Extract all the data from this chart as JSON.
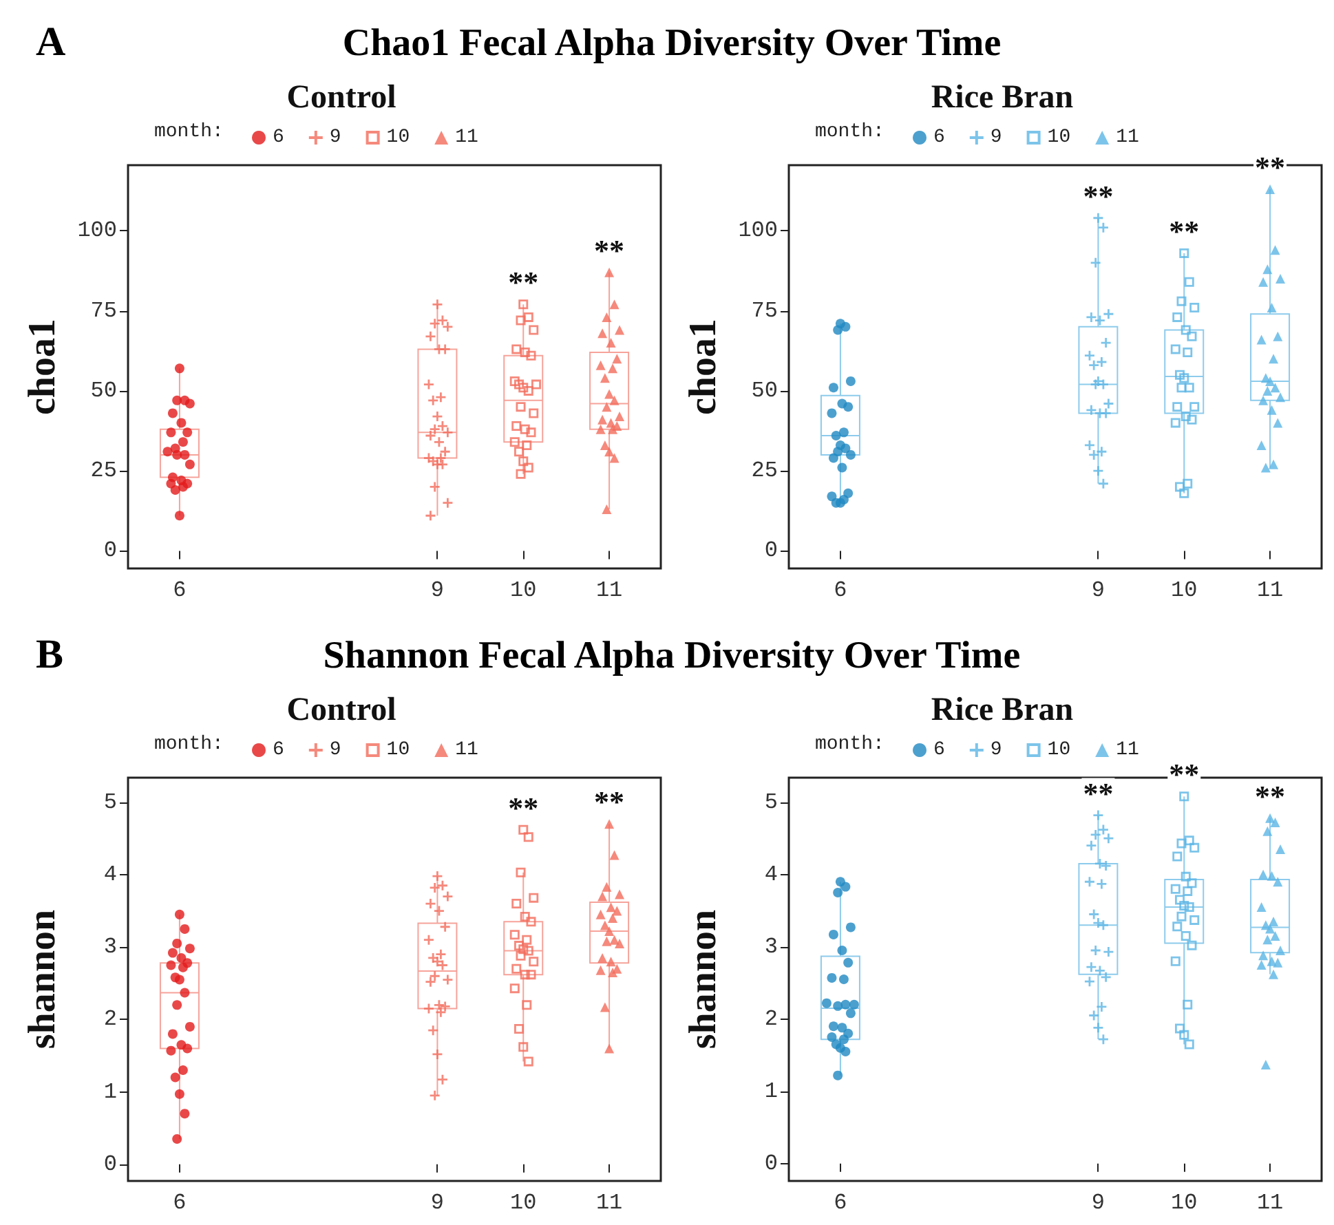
{
  "chart_data": [
    {
      "type": "box",
      "title": "Control",
      "ylabel": "choa1",
      "colors": [
        "#f6a39a",
        "#f6a39a",
        "#f6a39a",
        "#f6a39a"
      ],
      "legend_title": "month:",
      "legend": "top",
      "x": [
        6,
        9,
        10,
        11
      ],
      "xlim": [
        5.4,
        11.6
      ],
      "xticks": [
        6,
        9,
        10,
        11
      ],
      "ylim": [
        -5.5,
        120.5
      ],
      "yticks": [
        0,
        25,
        50,
        75,
        100
      ],
      "annotations": [
        "A",
        "Chao1 Fecal Alpha Diversity Over Time",
        {
          "text": "**",
          "x": 10,
          "y": 77
        },
        {
          "text": "**",
          "x": 11,
          "y": 87
        }
      ],
      "boxes": [
        {
          "low": 11,
          "q1": 23,
          "median": 30,
          "q3": 38,
          "high": 57
        },
        {
          "low": 11,
          "q1": 29,
          "median": 37,
          "q3": 63,
          "high": 77
        },
        {
          "low": 24,
          "q1": 34,
          "median": 47,
          "q3": 61,
          "high": 77
        },
        {
          "low": 13,
          "q1": 38,
          "median": 46,
          "q3": 62,
          "high": 87
        }
      ],
      "series": [
        {
          "name": "6",
          "type": "scatter",
          "marker": "circle",
          "color": "#e31a1c",
          "x": [
            6,
            6.06,
            5.97,
            6.12,
            5.92,
            6.02,
            6.09,
            5.9,
            6.04,
            5.95,
            5.86,
            6.06,
            5.97,
            6.12,
            5.92,
            6.02,
            6.09,
            5.9,
            6.04,
            5.95,
            6
          ],
          "values": [
            57,
            47,
            47,
            46,
            43,
            40,
            37,
            37,
            34,
            32,
            31,
            30,
            30,
            27,
            23,
            22,
            21,
            21,
            20,
            19,
            11
          ]
        },
        {
          "name": "9",
          "type": "scatter",
          "marker": "cross",
          "color": "#f26b5b",
          "x": [
            9,
            9.06,
            8.97,
            9.12,
            8.92,
            9.02,
            9.09,
            8.9,
            9.04,
            8.95,
            9,
            9.06,
            8.97,
            9.12,
            8.92,
            9.02,
            9.09,
            8.9,
            9.04,
            8.95,
            9,
            9.06,
            8.97,
            9.12,
            8.92
          ],
          "values": [
            77,
            72,
            71,
            70,
            67,
            63,
            63,
            52,
            48,
            47,
            42,
            39,
            38,
            37,
            36,
            34,
            31,
            29,
            29,
            28,
            27,
            27,
            20,
            15,
            11
          ]
        },
        {
          "name": "10",
          "type": "scatter",
          "marker": "square",
          "color": "#f26b5b",
          "x": [
            10,
            10.06,
            9.97,
            10.12,
            9.92,
            10.02,
            10.09,
            9.9,
            10.15,
            9.95,
            10,
            10.06,
            9.97,
            10.12,
            9.92,
            10.02,
            10.09,
            9.9,
            10.04,
            9.95,
            10,
            10.06,
            9.97
          ],
          "values": [
            77,
            73,
            72,
            69,
            63,
            62,
            61,
            53,
            52,
            52,
            51,
            50,
            45,
            43,
            39,
            38,
            37,
            34,
            33,
            31,
            28,
            26,
            24
          ]
        },
        {
          "name": "11",
          "type": "scatter",
          "marker": "triangle",
          "color": "#f26b5b",
          "x": [
            11,
            11.06,
            10.97,
            11.12,
            10.92,
            11.02,
            11.09,
            10.9,
            11.04,
            10.95,
            11,
            11.06,
            10.97,
            11.12,
            10.92,
            11.02,
            11.09,
            10.9,
            11.04,
            10.95,
            11,
            11.06,
            10.97
          ],
          "values": [
            87,
            77,
            73,
            69,
            68,
            65,
            60,
            58,
            57,
            54,
            49,
            47,
            45,
            42,
            41,
            40,
            39,
            38,
            38,
            33,
            31,
            29,
            13
          ]
        }
      ]
    },
    {
      "type": "box",
      "title": "Rice Bran",
      "ylabel": "choa1",
      "colors": [
        "#8dcbec",
        "#8dcbec",
        "#8dcbec",
        "#8dcbec"
      ],
      "legend_title": "month:",
      "legend": "top",
      "x": [
        6,
        9,
        10,
        11
      ],
      "xlim": [
        5.4,
        11.6
      ],
      "xticks": [
        6,
        9,
        10,
        11
      ],
      "ylim": [
        -5.5,
        120.5
      ],
      "yticks": [
        0,
        25,
        50,
        75,
        100
      ],
      "annotations": [
        {
          "text": "**",
          "x": 9,
          "y": 104
        },
        {
          "text": "**",
          "x": 10,
          "y": 93
        },
        {
          "text": "**",
          "x": 11,
          "y": 113
        }
      ],
      "boxes": [
        {
          "low": 15,
          "q1": 30,
          "median": 36,
          "q3": 48.5,
          "high": 71
        },
        {
          "low": 21,
          "q1": 43,
          "median": 52,
          "q3": 70,
          "high": 104
        },
        {
          "low": 18,
          "q1": 43,
          "median": 54.5,
          "q3": 69,
          "high": 93
        },
        {
          "low": 26,
          "q1": 47,
          "median": 53,
          "q3": 74,
          "high": 113
        }
      ],
      "series": [
        {
          "name": "6",
          "type": "scatter",
          "marker": "circle",
          "color": "#1f88c2",
          "x": [
            6,
            6.06,
            5.97,
            6.12,
            5.92,
            6.02,
            6.09,
            5.9,
            6.04,
            5.95,
            6,
            6.06,
            5.97,
            6.12,
            5.92,
            6.02,
            6.09,
            5.9,
            6.04,
            5.95,
            6
          ],
          "values": [
            71,
            70,
            69,
            53,
            51,
            46,
            45,
            43,
            37,
            36,
            33,
            32,
            31,
            30,
            29,
            26,
            18,
            17,
            16,
            15,
            15
          ]
        },
        {
          "name": "9",
          "type": "scatter",
          "marker": "cross",
          "color": "#5bb5e5",
          "x": [
            9,
            9.06,
            8.97,
            9.12,
            8.92,
            9.02,
            9.09,
            8.9,
            9.04,
            8.95,
            9,
            9.06,
            8.97,
            9.12,
            8.92,
            9.02,
            9.09,
            8.9,
            9.04,
            8.95,
            9,
            9.06
          ],
          "values": [
            104,
            101,
            90,
            74,
            73,
            72,
            65,
            61,
            59,
            58,
            53,
            52,
            52,
            46,
            44,
            43,
            43,
            33,
            31,
            30,
            25,
            21
          ]
        },
        {
          "name": "10",
          "type": "scatter",
          "marker": "square",
          "color": "#5bb5e5",
          "x": [
            10,
            10.06,
            9.97,
            10.12,
            9.92,
            10.02,
            10.09,
            9.9,
            10.04,
            9.95,
            10,
            10.06,
            9.97,
            10.12,
            9.92,
            10.02,
            10.09,
            9.9,
            10.04,
            9.95,
            10
          ],
          "values": [
            93,
            84,
            78,
            76,
            73,
            69,
            67,
            63,
            62,
            55,
            54,
            51,
            51,
            45,
            45,
            42,
            41,
            40,
            21,
            20,
            18
          ]
        },
        {
          "name": "11",
          "type": "scatter",
          "marker": "triangle",
          "color": "#5bb5e5",
          "x": [
            11,
            11.06,
            10.97,
            11.12,
            10.92,
            11.02,
            11.09,
            10.9,
            11.04,
            10.95,
            11,
            11.06,
            10.97,
            11.12,
            10.92,
            11.02,
            11.09,
            10.9,
            11.04,
            10.95
          ],
          "values": [
            113,
            94,
            88,
            85,
            84,
            76,
            67,
            66,
            60,
            54,
            53,
            51,
            50,
            48,
            47,
            44,
            40,
            33,
            27,
            26
          ]
        }
      ]
    },
    {
      "type": "box",
      "title": "Control",
      "ylabel": "shannon",
      "colors": [
        "#f6a39a",
        "#f6a39a",
        "#f6a39a",
        "#f6a39a"
      ],
      "legend_title": "month:",
      "legend": "top",
      "x": [
        6,
        9,
        10,
        11
      ],
      "xlim": [
        5.4,
        11.6
      ],
      "xticks": [
        6,
        9,
        10,
        11
      ],
      "ylim": [
        -0.23,
        5.34
      ],
      "yticks": [
        0,
        1,
        2,
        3,
        4,
        5
      ],
      "annotations": [
        "B",
        "Shannon Fecal Alpha Diversity Over Time",
        {
          "text": "**",
          "x": 10,
          "y": 4.62
        },
        {
          "text": "**",
          "x": 11,
          "y": 4.7
        }
      ],
      "boxes": [
        {
          "low": 0.35,
          "q1": 1.6,
          "median": 2.37,
          "q3": 2.78,
          "high": 3.45
        },
        {
          "low": 0.95,
          "q1": 2.15,
          "median": 2.67,
          "q3": 3.33,
          "high": 3.98
        },
        {
          "low": 1.42,
          "q1": 2.62,
          "median": 2.95,
          "q3": 3.35,
          "high": 4.03
        },
        {
          "low": 1.6,
          "q1": 2.78,
          "median": 3.22,
          "q3": 3.62,
          "high": 4.7
        }
      ],
      "series": [
        {
          "name": "6",
          "type": "scatter",
          "marker": "circle",
          "color": "#e31a1c",
          "x": [
            6,
            6.06,
            5.97,
            6.12,
            5.92,
            6.02,
            6.09,
            5.9,
            6.04,
            5.95,
            6,
            6.06,
            5.97,
            6.12,
            5.92,
            6.02,
            6.09,
            5.9,
            6.04,
            5.95,
            6,
            6.06,
            5.97
          ],
          "values": [
            3.45,
            3.25,
            3.05,
            2.98,
            2.92,
            2.85,
            2.78,
            2.75,
            2.72,
            2.58,
            2.55,
            2.37,
            2.2,
            1.9,
            1.8,
            1.65,
            1.6,
            1.57,
            1.3,
            1.2,
            0.97,
            0.7,
            0.35
          ]
        },
        {
          "name": "9",
          "type": "scatter",
          "marker": "cross",
          "color": "#f26b5b",
          "x": [
            9,
            9.06,
            8.97,
            9.12,
            8.92,
            9.02,
            9.09,
            8.9,
            9.04,
            8.95,
            9,
            9.06,
            8.97,
            9.12,
            8.92,
            9.02,
            9.09,
            8.9,
            9.04,
            8.95,
            9,
            9.06,
            8.97
          ],
          "values": [
            3.98,
            3.85,
            3.82,
            3.7,
            3.6,
            3.5,
            3.28,
            3.1,
            2.9,
            2.85,
            2.8,
            2.75,
            2.6,
            2.55,
            2.52,
            2.2,
            2.18,
            2.15,
            2.1,
            1.85,
            1.52,
            1.17,
            0.95
          ]
        },
        {
          "name": "10",
          "type": "scatter",
          "marker": "square",
          "color": "#f26b5b",
          "x": [
            10,
            10.06,
            9.97,
            10.12,
            9.92,
            10.02,
            10.09,
            9.9,
            10.04,
            9.95,
            10,
            10.06,
            9.97,
            10.12,
            9.92,
            10.02,
            10.09,
            9.9,
            10.04,
            9.95,
            10,
            10.06
          ],
          "values": [
            4.62,
            4.52,
            4.03,
            3.68,
            3.6,
            3.42,
            3.35,
            3.17,
            3.1,
            3.02,
            2.97,
            2.95,
            2.88,
            2.8,
            2.7,
            2.62,
            2.62,
            2.43,
            2.2,
            1.87,
            1.62,
            1.42
          ]
        },
        {
          "name": "11",
          "type": "scatter",
          "marker": "triangle",
          "color": "#f26b5b",
          "x": [
            11,
            11.06,
            10.97,
            11.12,
            10.92,
            11.02,
            11.09,
            10.9,
            11.04,
            10.95,
            11,
            11.06,
            10.97,
            11.12,
            10.92,
            11.02,
            11.09,
            10.9,
            11.04,
            10.95,
            11
          ],
          "values": [
            4.7,
            4.27,
            3.83,
            3.73,
            3.7,
            3.55,
            3.5,
            3.45,
            3.4,
            3.3,
            3.22,
            3.1,
            3.08,
            3.05,
            2.85,
            2.8,
            2.7,
            2.68,
            2.65,
            2.17,
            1.6
          ]
        }
      ]
    },
    {
      "type": "box",
      "title": "Rice Bran",
      "ylabel": "shannon",
      "colors": [
        "#8dcbec",
        "#8dcbec",
        "#8dcbec",
        "#8dcbec"
      ],
      "legend_title": "month:",
      "legend": "top",
      "x": [
        6,
        9,
        10,
        11
      ],
      "xlim": [
        5.4,
        11.6
      ],
      "xticks": [
        6,
        9,
        10,
        11
      ],
      "ylim": [
        -0.24,
        5.34
      ],
      "yticks": [
        0,
        1,
        2,
        3,
        4,
        5
      ],
      "annotations": [
        {
          "text": "**",
          "x": 9,
          "y": 4.82
        },
        {
          "text": "**",
          "x": 10,
          "y": 5.08
        },
        {
          "text": "**",
          "x": 11,
          "y": 4.78
        }
      ],
      "boxes": [
        {
          "low": 1.22,
          "q1": 1.72,
          "median": 2.15,
          "q3": 2.87,
          "high": 3.9
        },
        {
          "low": 1.72,
          "q1": 2.62,
          "median": 3.3,
          "q3": 4.15,
          "high": 4.82
        },
        {
          "low": 1.65,
          "q1": 3.05,
          "median": 3.55,
          "q3": 3.93,
          "high": 5.08
        },
        {
          "low": 2.62,
          "q1": 2.92,
          "median": 3.27,
          "q3": 3.93,
          "high": 4.78
        }
      ],
      "series": [
        {
          "name": "6",
          "type": "scatter",
          "marker": "circle",
          "color": "#1f88c2",
          "x": [
            6,
            6.06,
            5.97,
            6.12,
            5.92,
            6.02,
            6.09,
            5.9,
            6.04,
            5.84,
            6.16,
            6.06,
            5.97,
            6.12,
            5.92,
            6.02,
            6.09,
            5.9,
            6.04,
            5.95,
            6,
            6.06,
            5.97
          ],
          "values": [
            3.9,
            3.83,
            3.75,
            3.27,
            3.17,
            2.95,
            2.78,
            2.57,
            2.55,
            2.22,
            2.2,
            2.2,
            2.18,
            2.08,
            1.9,
            1.88,
            1.8,
            1.75,
            1.72,
            1.65,
            1.6,
            1.55,
            1.22
          ]
        },
        {
          "name": "9",
          "type": "scatter",
          "marker": "cross",
          "color": "#5bb5e5",
          "x": [
            9,
            9.06,
            8.97,
            9.12,
            8.92,
            9.02,
            9.09,
            8.9,
            9.04,
            8.95,
            9,
            9.06,
            8.97,
            9.12,
            8.92,
            9.02,
            9.09,
            8.9,
            9.04,
            8.95,
            9,
            9.06
          ],
          "values": [
            4.82,
            4.62,
            4.55,
            4.5,
            4.4,
            4.15,
            4.12,
            3.9,
            3.87,
            3.45,
            3.33,
            3.3,
            2.95,
            2.93,
            2.72,
            2.67,
            2.58,
            2.52,
            2.17,
            2.05,
            1.88,
            1.72
          ]
        },
        {
          "name": "10",
          "type": "scatter",
          "marker": "square",
          "color": "#5bb5e5",
          "x": [
            10,
            10.06,
            9.97,
            10.12,
            9.92,
            10.02,
            10.09,
            9.9,
            10.04,
            9.95,
            10,
            10.06,
            9.97,
            10.12,
            9.92,
            10.02,
            10.09,
            9.9,
            10.04,
            9.95,
            10,
            10.06
          ],
          "values": [
            5.08,
            4.47,
            4.43,
            4.37,
            4.25,
            3.97,
            3.88,
            3.8,
            3.77,
            3.65,
            3.57,
            3.55,
            3.42,
            3.37,
            3.28,
            3.15,
            3.02,
            2.8,
            2.2,
            1.87,
            1.78,
            1.65
          ]
        },
        {
          "name": "11",
          "type": "scatter",
          "marker": "triangle",
          "color": "#5bb5e5",
          "x": [
            11,
            11.06,
            10.97,
            11.12,
            10.92,
            11.02,
            11.09,
            10.9,
            11.04,
            10.95,
            11,
            11.06,
            10.97,
            11.12,
            10.92,
            11.02,
            11.09,
            10.9,
            11.04,
            10.95
          ],
          "values": [
            4.78,
            4.72,
            4.6,
            4.35,
            4,
            3.98,
            3.9,
            3.55,
            3.35,
            3.3,
            3.25,
            3.15,
            3.1,
            2.95,
            2.88,
            2.8,
            2.78,
            2.75,
            2.62,
            1.37
          ]
        }
      ]
    }
  ]
}
